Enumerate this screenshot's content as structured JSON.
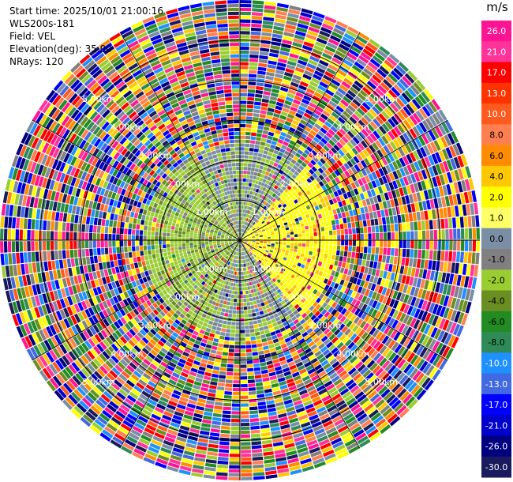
{
  "header": {
    "start_time": "Start time: 2025/10/01 21:00:16",
    "instrument": "WLS200s-181",
    "field": "Field: VEL",
    "elevation": "Elevation(deg): 35.00",
    "nrays": "NRays: 120"
  },
  "chart_data": {
    "type": "heatmap",
    "projection": "polar",
    "field": "VEL",
    "rays": 120,
    "range_km": [
      0,
      6
    ],
    "range_rings_km": [
      1,
      2,
      3,
      4,
      5
    ],
    "ring_labels": [
      "1.00km",
      "2.00km",
      "3.00km",
      "4.00km",
      "5.00km"
    ],
    "colorbar": {
      "unit": "m/s",
      "ticks": [
        "26.0",
        "21.0",
        "17.0",
        "13.0",
        "10.0",
        "8.0",
        "6.0",
        "4.0",
        "2.0",
        "1.0",
        "0.0",
        "-1.0",
        "-2.0",
        "-4.0",
        "-6.0",
        "-8.0",
        "-10.0",
        "-13.0",
        "-17.0",
        "-21.0",
        "-26.0",
        "-30.0"
      ],
      "colors": [
        "#ff1493",
        "#ff3399",
        "#ff0000",
        "#ff3300",
        "#ff5a1e",
        "#ff7f50",
        "#ff8c00",
        "#ffc800",
        "#ffff00",
        "#ffff66",
        "#7a8fa6",
        "#808080",
        "#9acd32",
        "#6b8e23",
        "#228b22",
        "#2e8b57",
        "#1e90ff",
        "#4169e1",
        "#0000ff",
        "#0000cd",
        "#000080",
        "#1a1a5e"
      ]
    }
  }
}
